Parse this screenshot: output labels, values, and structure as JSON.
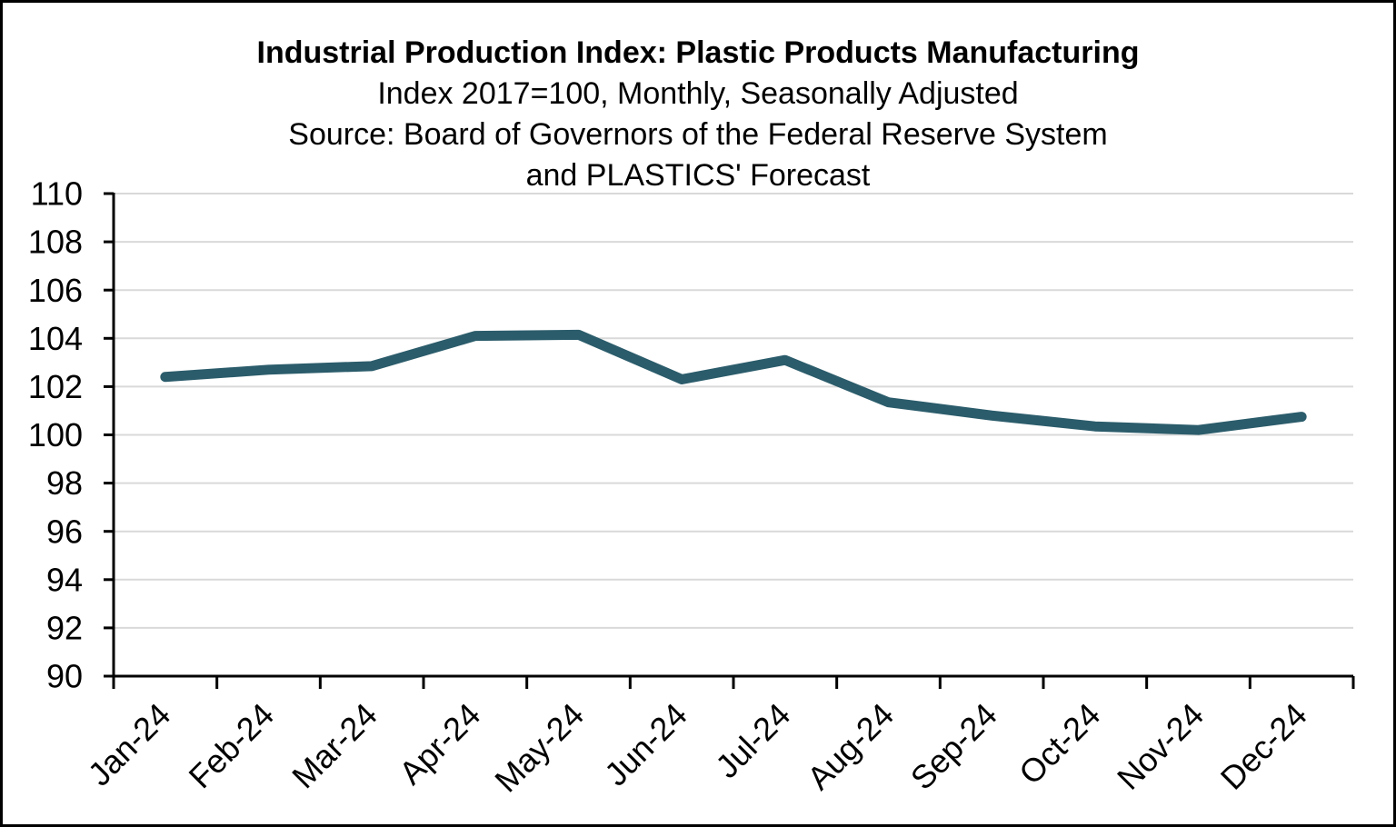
{
  "chart_data": {
    "type": "line",
    "title": "Industrial Production Index: Plastic Products Manufacturing",
    "subtitle_lines": [
      "Index 2017=100, Monthly, Seasonally Adjusted",
      "Source: Board of Governors of the Federal Reserve System",
      "and PLASTICS' Forecast"
    ],
    "categories": [
      "Jan-24",
      "Feb-24",
      "Mar-24",
      "Apr-24",
      "May-24",
      "Jun-24",
      "Jul-24",
      "Aug-24",
      "Sep-24",
      "Oct-24",
      "Nov-24",
      "Dec-24"
    ],
    "values": [
      102.4,
      102.7,
      102.85,
      104.1,
      104.15,
      102.3,
      103.1,
      101.35,
      100.8,
      100.35,
      100.2,
      100.75
    ],
    "xlabel": "",
    "ylabel": "",
    "ylim": [
      90,
      110
    ],
    "yticks": [
      90,
      92,
      94,
      96,
      98,
      100,
      102,
      104,
      106,
      108,
      110
    ],
    "grid": "horizontal",
    "legend": "none",
    "xtick_rotation_deg": 45,
    "colors": {
      "line": "#2B5C6B",
      "gridline": "#D9D9D9",
      "axis": "#000000",
      "text": "#000000",
      "background": "#FFFFFF",
      "border": "#000000"
    }
  }
}
